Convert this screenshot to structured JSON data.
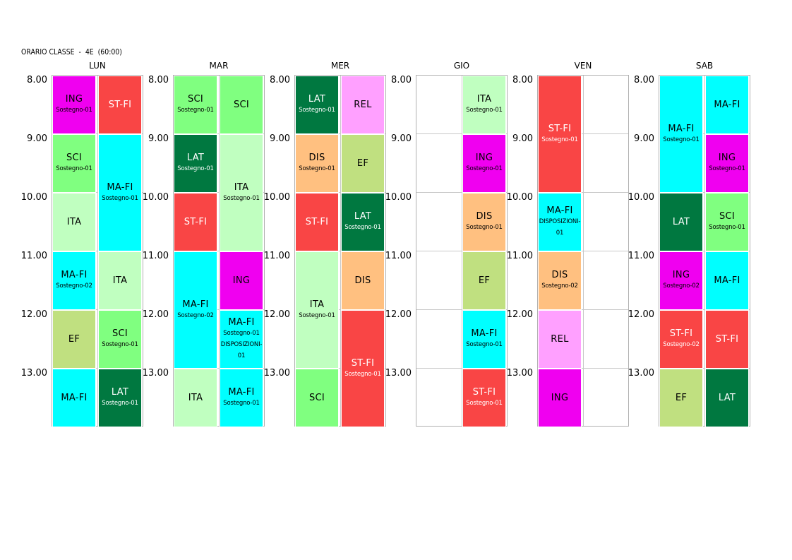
{
  "title": "ORARIO CLASSE  -  4E  (60:00)",
  "times": [
    "8.00",
    "9.00",
    "10.00",
    "11.00",
    "12.00",
    "13.00"
  ],
  "colors": {
    "ING": "#f000f0",
    "ST-FI": "#f94545",
    "SCI": "#80ff80",
    "MA-FI": "#00ffff",
    "ITA": "#c0ffc0",
    "EF": "#c0e080",
    "LAT": "#007840",
    "REL": "#ffa0ff",
    "DIS": "#ffc080"
  },
  "days": [
    {
      "name": "LUN",
      "lessons": [
        {
          "subject": "ING",
          "note": "Sostegno-01",
          "col": 0,
          "start": 0,
          "span": 1
        },
        {
          "subject": "ST-FI",
          "note": "",
          "col": 1,
          "start": 0,
          "span": 1
        },
        {
          "subject": "SCI",
          "note": "Sostegno-01",
          "col": 0,
          "start": 1,
          "span": 1
        },
        {
          "subject": "MA-FI",
          "note": "Sostegno-01",
          "col": 1,
          "start": 1,
          "span": 2
        },
        {
          "subject": "ITA",
          "note": "",
          "col": 0,
          "start": 2,
          "span": 1
        },
        {
          "subject": "MA-FI",
          "note": "Sostegno-02",
          "col": 0,
          "start": 3,
          "span": 1
        },
        {
          "subject": "ITA",
          "note": "",
          "col": 1,
          "start": 3,
          "span": 1
        },
        {
          "subject": "EF",
          "note": "",
          "col": 0,
          "start": 4,
          "span": 1
        },
        {
          "subject": "SCI",
          "note": "Sostegno-01",
          "col": 1,
          "start": 4,
          "span": 1
        },
        {
          "subject": "MA-FI",
          "note": "",
          "col": 0,
          "start": 5,
          "span": 1
        },
        {
          "subject": "LAT",
          "note": "Sostegno-01",
          "col": 1,
          "start": 5,
          "span": 1
        }
      ]
    },
    {
      "name": "MAR",
      "lessons": [
        {
          "subject": "SCI",
          "note": "Sostegno-01",
          "col": 0,
          "start": 0,
          "span": 1
        },
        {
          "subject": "SCI",
          "note": "",
          "col": 1,
          "start": 0,
          "span": 1
        },
        {
          "subject": "LAT",
          "note": "Sostegno-01",
          "col": 0,
          "start": 1,
          "span": 1
        },
        {
          "subject": "ITA",
          "note": "Sostegno-01",
          "col": 1,
          "start": 1,
          "span": 2
        },
        {
          "subject": "ST-FI",
          "note": "",
          "col": 0,
          "start": 2,
          "span": 1
        },
        {
          "subject": "MA-FI",
          "note": "Sostegno-02",
          "col": 0,
          "start": 3,
          "span": 2
        },
        {
          "subject": "ING",
          "note": "",
          "col": 1,
          "start": 3,
          "span": 1
        },
        {
          "subject": "MA-FI",
          "note": "Sostegno-01",
          "note2": "DISPOSIZIONI-01",
          "col": 1,
          "start": 4,
          "span": 1
        },
        {
          "subject": "ITA",
          "note": "",
          "col": 0,
          "start": 5,
          "span": 1
        },
        {
          "subject": "MA-FI",
          "note": "Sostegno-01",
          "col": 1,
          "start": 5,
          "span": 1
        }
      ]
    },
    {
      "name": "MER",
      "lessons": [
        {
          "subject": "LAT",
          "note": "Sostegno-01",
          "col": 0,
          "start": 0,
          "span": 1
        },
        {
          "subject": "REL",
          "note": "",
          "col": 1,
          "start": 0,
          "span": 1
        },
        {
          "subject": "DIS",
          "note": "Sostegno-01",
          "col": 0,
          "start": 1,
          "span": 1
        },
        {
          "subject": "EF",
          "note": "",
          "col": 1,
          "start": 1,
          "span": 1
        },
        {
          "subject": "ST-FI",
          "note": "",
          "col": 0,
          "start": 2,
          "span": 1
        },
        {
          "subject": "LAT",
          "note": "Sostegno-01",
          "col": 1,
          "start": 2,
          "span": 1
        },
        {
          "subject": "ITA",
          "note": "Sostegno-01",
          "col": 0,
          "start": 3,
          "span": 2
        },
        {
          "subject": "DIS",
          "note": "",
          "col": 1,
          "start": 3,
          "span": 1
        },
        {
          "subject": "ST-FI",
          "note": "Sostegno-01",
          "col": 1,
          "start": 4,
          "span": 2
        },
        {
          "subject": "SCI",
          "note": "",
          "col": 0,
          "start": 5,
          "span": 1
        }
      ]
    },
    {
      "name": "GIO",
      "lessons": [
        {
          "subject": "ITA",
          "note": "Sostegno-01",
          "col": 1,
          "start": 0,
          "span": 1
        },
        {
          "subject": "ING",
          "note": "Sostegno-01",
          "col": 1,
          "start": 1,
          "span": 1
        },
        {
          "subject": "DIS",
          "note": "Sostegno-01",
          "col": 1,
          "start": 2,
          "span": 1
        },
        {
          "subject": "EF",
          "note": "",
          "col": 1,
          "start": 3,
          "span": 1
        },
        {
          "subject": "MA-FI",
          "note": "Sostegno-01",
          "col": 1,
          "start": 4,
          "span": 1
        },
        {
          "subject": "ST-FI",
          "note": "Sostegno-01",
          "col": 1,
          "start": 5,
          "span": 1
        }
      ]
    },
    {
      "name": "VEN",
      "lessons": [
        {
          "subject": "ST-FI",
          "note": "Sostegno-01",
          "col": 0,
          "start": 0,
          "span": 2
        },
        {
          "subject": "MA-FI",
          "note": "DISPOSIZIONI-01",
          "col": 0,
          "start": 2,
          "span": 1
        },
        {
          "subject": "DIS",
          "note": "Sostegno-02",
          "col": 0,
          "start": 3,
          "span": 1
        },
        {
          "subject": "REL",
          "note": "",
          "col": 0,
          "start": 4,
          "span": 1
        },
        {
          "subject": "ING",
          "note": "",
          "col": 0,
          "start": 5,
          "span": 1
        }
      ]
    },
    {
      "name": "SAB",
      "lessons": [
        {
          "subject": "MA-FI",
          "note": "Sostegno-01",
          "col": 0,
          "start": 0,
          "span": 2
        },
        {
          "subject": "MA-FI",
          "note": "",
          "col": 1,
          "start": 0,
          "span": 1
        },
        {
          "subject": "ING",
          "note": "Sostegno-01",
          "col": 1,
          "start": 1,
          "span": 1
        },
        {
          "subject": "LAT",
          "note": "",
          "col": 0,
          "start": 2,
          "span": 1
        },
        {
          "subject": "SCI",
          "note": "Sostegno-01",
          "col": 1,
          "start": 2,
          "span": 1
        },
        {
          "subject": "ING",
          "note": "Sostegno-02",
          "col": 0,
          "start": 3,
          "span": 1
        },
        {
          "subject": "MA-FI",
          "note": "",
          "col": 1,
          "start": 3,
          "span": 1
        },
        {
          "subject": "ST-FI",
          "note": "Sostegno-02",
          "col": 0,
          "start": 4,
          "span": 1
        },
        {
          "subject": "ST-FI",
          "note": "",
          "col": 1,
          "start": 4,
          "span": 1
        },
        {
          "subject": "EF",
          "note": "",
          "col": 0,
          "start": 5,
          "span": 1
        },
        {
          "subject": "LAT",
          "note": "",
          "col": 1,
          "start": 5,
          "span": 1
        }
      ]
    }
  ]
}
